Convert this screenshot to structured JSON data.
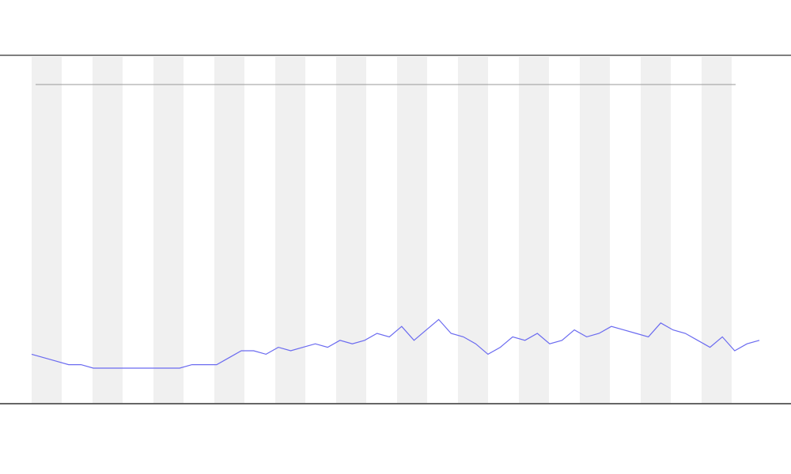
{
  "chart_data": {
    "type": "line",
    "values": [
      14,
      13,
      12,
      11,
      11,
      10,
      10,
      10,
      10,
      10,
      10,
      10,
      10,
      11,
      11,
      11,
      13,
      15,
      15,
      14,
      16,
      15,
      16,
      17,
      16,
      18,
      17,
      18,
      20,
      19,
      22,
      18,
      21,
      24,
      20,
      19,
      17,
      14,
      16,
      19,
      18,
      20,
      17,
      18,
      21,
      19,
      20,
      22,
      21,
      20,
      19,
      23,
      21,
      20,
      18,
      16,
      19,
      15,
      17,
      18
    ],
    "color": "#6a6af0",
    "ylim": [
      0,
      100
    ]
  }
}
